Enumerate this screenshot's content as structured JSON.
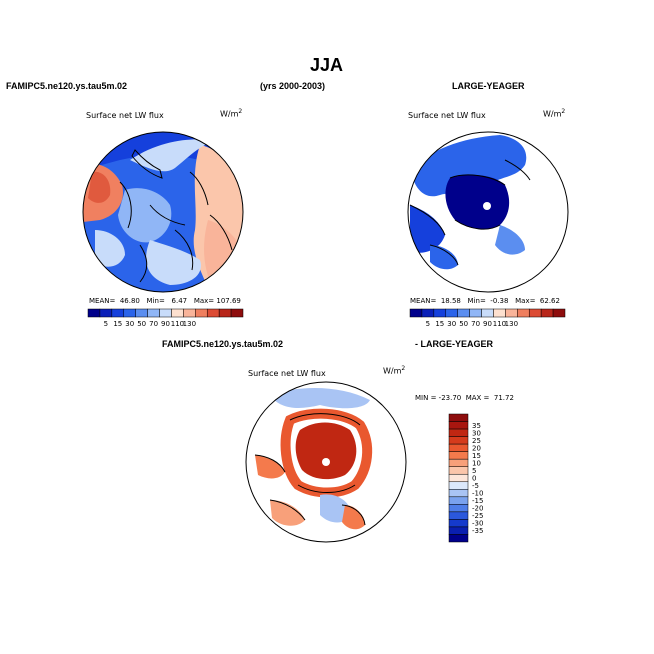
{
  "title": "JJA",
  "headers": {
    "left": "FAMIPC5.ne120.ys.tau5m.02",
    "years": "(yrs 2000-2003)",
    "right": "LARGE-YEAGER",
    "diff_left": "FAMIPC5.ne120.ys.tau5m.02",
    "diff_right": "- LARGE-YEAGER"
  },
  "chart_data": [
    {
      "type": "heatmap",
      "projection": "polar-stereographic-north",
      "title": "Surface net LW flux",
      "units": "W/m2",
      "units_display": {
        "base": "W/m",
        "exp": "2"
      },
      "stats": {
        "mean_label": "MEAN=",
        "mean": "46.80",
        "min_label": "Min=",
        "min": "6.47",
        "max_label": "Max=",
        "max": "107.69"
      },
      "colorbar": {
        "levels": [
          "5",
          "15",
          "30",
          "50",
          "70",
          "90",
          "110",
          "130"
        ],
        "colors": [
          "#00008b",
          "#0a1fb8",
          "#1540dc",
          "#2b64ea",
          "#5b8ef0",
          "#90b6f6",
          "#c8dcfa",
          "#fde0cf",
          "#f9b49a",
          "#ef7f5f",
          "#dc4b34",
          "#b8261a",
          "#8e0d0d"
        ]
      }
    },
    {
      "type": "heatmap",
      "projection": "polar-stereographic-north",
      "title": "Surface net LW flux",
      "units": "W/m2",
      "units_display": {
        "base": "W/m",
        "exp": "2"
      },
      "stats": {
        "mean_label": "MEAN=",
        "mean": "18.58",
        "min_label": "Min=",
        "min": "-0.38",
        "max_label": "Max=",
        "max": "62.62"
      },
      "colorbar": {
        "levels": [
          "5",
          "15",
          "30",
          "50",
          "70",
          "90",
          "110",
          "130"
        ],
        "colors": [
          "#00008b",
          "#0a1fb8",
          "#1540dc",
          "#2b64ea",
          "#5b8ef0",
          "#90b6f6",
          "#c8dcfa",
          "#fde0cf",
          "#f9b49a",
          "#ef7f5f",
          "#dc4b34",
          "#b8261a",
          "#8e0d0d"
        ]
      }
    },
    {
      "type": "heatmap",
      "projection": "polar-stereographic-north",
      "title": "Surface net LW flux",
      "units": "W/m2",
      "units_display": {
        "base": "W/m",
        "exp": "2"
      },
      "stats": {
        "min_label": "MIN =",
        "min": "-23.70",
        "max_label": "MAX =",
        "max": "71.72"
      },
      "colorbar": {
        "levels": [
          "35",
          "30",
          "25",
          "20",
          "15",
          "10",
          "5",
          "0",
          "-5",
          "-10",
          "-15",
          "-20",
          "-25",
          "-30",
          "-35"
        ],
        "colors": [
          "#8e0d0d",
          "#a8160f",
          "#c02712",
          "#d53b1c",
          "#e9582f",
          "#f47a4c",
          "#f8a07a",
          "#fbc6ab",
          "#fde6da",
          "#dce8fb",
          "#a9c4f4",
          "#7aa2ee",
          "#4f7ee8",
          "#2b58dc",
          "#153acc",
          "#0a1fb0",
          "#00008b"
        ]
      }
    }
  ]
}
